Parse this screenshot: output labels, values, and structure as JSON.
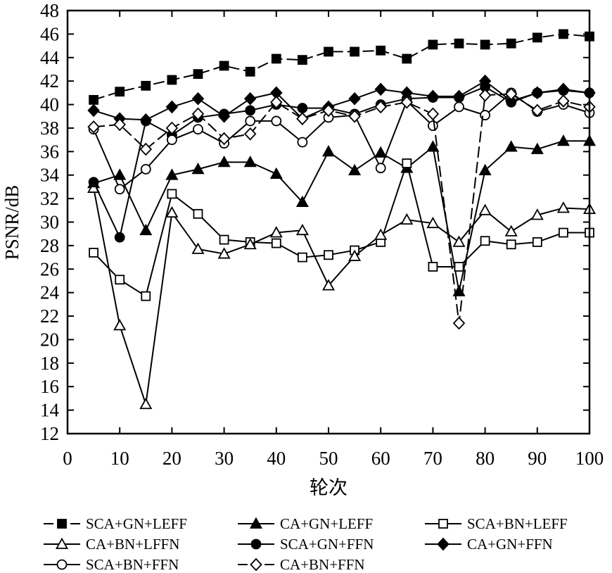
{
  "chart_data": {
    "type": "line",
    "title": "",
    "xlabel": "轮次",
    "ylabel": "PSNR/dB",
    "xlim": [
      0,
      100
    ],
    "ylim": [
      12,
      48
    ],
    "xticks": [
      "0",
      "10",
      "20",
      "30",
      "40",
      "50",
      "60",
      "70",
      "80",
      "90",
      "100"
    ],
    "yticks": [
      "12",
      "14",
      "16",
      "18",
      "20",
      "22",
      "24",
      "26",
      "28",
      "30",
      "32",
      "34",
      "36",
      "38",
      "40",
      "42",
      "44",
      "46",
      "48"
    ],
    "grid": false,
    "legend_position": "bottom",
    "x": [
      5,
      10,
      15,
      20,
      25,
      30,
      35,
      40,
      45,
      50,
      55,
      60,
      65,
      70,
      75,
      80,
      85,
      90,
      95,
      100
    ],
    "series": [
      {
        "name": "SCA+GN+LEFF",
        "marker": "square",
        "fill": "filled",
        "dash": "long",
        "values": [
          40.4,
          41.1,
          41.6,
          42.1,
          42.6,
          43.3,
          42.8,
          43.9,
          43.8,
          44.5,
          44.5,
          44.6,
          43.9,
          45.1,
          45.2,
          45.1,
          45.2,
          45.7,
          46.0,
          45.8
        ]
      },
      {
        "name": "CA+GN+LEFF",
        "marker": "triangle",
        "fill": "filled",
        "dash": "solid",
        "values": [
          33.3,
          34.0,
          29.3,
          34.0,
          34.5,
          35.1,
          35.1,
          34.1,
          31.7,
          36.0,
          34.4,
          35.9,
          34.6,
          36.4,
          24.1,
          34.4,
          36.4,
          36.2,
          36.9,
          36.9
        ]
      },
      {
        "name": "SCA+BN+LEFF",
        "marker": "square",
        "fill": "open",
        "dash": "solid",
        "values": [
          27.4,
          25.1,
          23.7,
          32.4,
          30.7,
          28.5,
          28.3,
          28.2,
          27.0,
          27.2,
          27.6,
          28.3,
          35.0,
          26.2,
          26.2,
          28.4,
          28.1,
          28.3,
          29.1,
          29.1
        ]
      },
      {
        "name": "CA+BN+LFFN",
        "marker": "triangle",
        "fill": "open",
        "dash": "solid",
        "values": [
          32.9,
          21.2,
          14.5,
          30.8,
          27.7,
          27.3,
          28.1,
          29.1,
          29.3,
          24.6,
          27.1,
          28.9,
          30.2,
          29.9,
          28.3,
          31.0,
          29.2,
          30.6,
          31.2,
          31.1
        ]
      },
      {
        "name": "SCA+GN+FFN",
        "marker": "circle",
        "fill": "filled",
        "dash": "solid",
        "values": [
          33.4,
          28.7,
          38.6,
          37.4,
          38.9,
          39.2,
          39.5,
          40.0,
          39.7,
          39.7,
          39.2,
          40.0,
          40.5,
          40.6,
          40.6,
          41.5,
          40.2,
          41.0,
          41.2,
          41.0
        ]
      },
      {
        "name": "CA+GN+FFN",
        "marker": "diamond",
        "fill": "filled",
        "dash": "solid",
        "values": [
          39.5,
          38.8,
          38.7,
          39.8,
          40.5,
          39.0,
          40.5,
          41.0,
          38.8,
          39.8,
          40.5,
          41.3,
          41.0,
          40.7,
          40.7,
          42.0,
          40.3,
          41.0,
          41.3,
          41.0
        ]
      },
      {
        "name": "SCA+BN+FFN",
        "marker": "circle",
        "fill": "open",
        "dash": "solid",
        "values": [
          37.9,
          32.8,
          34.5,
          37.0,
          37.9,
          36.7,
          38.6,
          38.6,
          36.8,
          38.9,
          39.1,
          34.6,
          40.3,
          38.2,
          39.8,
          39.1,
          41.0,
          39.4,
          40.0,
          39.3
        ]
      },
      {
        "name": "CA+BN+FFN",
        "marker": "diamond",
        "fill": "open",
        "dash": "long",
        "values": [
          38.1,
          38.3,
          36.2,
          38.0,
          39.2,
          37.1,
          37.5,
          40.2,
          38.8,
          39.5,
          39.0,
          39.8,
          40.2,
          39.2,
          21.4,
          40.8,
          40.9,
          39.5,
          40.3,
          39.8
        ]
      }
    ]
  }
}
